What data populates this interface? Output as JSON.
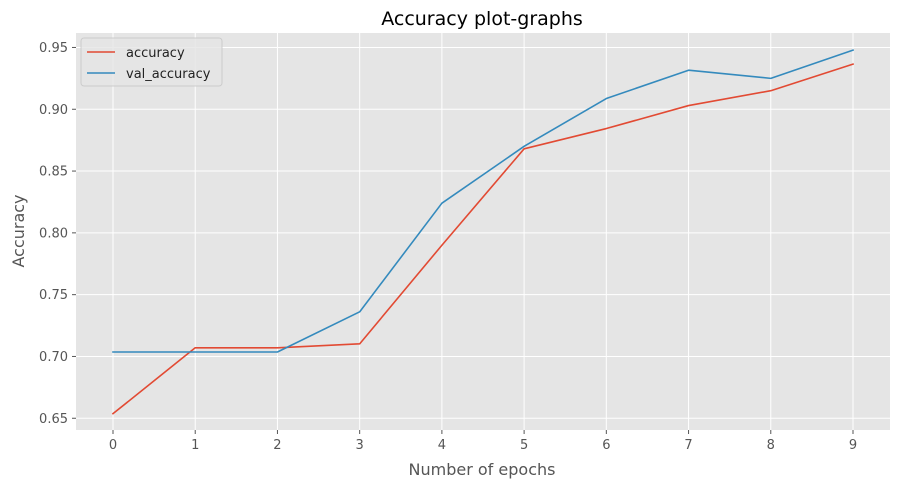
{
  "chart_data": {
    "type": "line",
    "title": "Accuracy plot-graphs",
    "xlabel": "Number of epochs",
    "ylabel": "Accuracy",
    "x": [
      0,
      1,
      2,
      3,
      4,
      5,
      6,
      7,
      8,
      9
    ],
    "xticks": [
      "0",
      "1",
      "2",
      "3",
      "4",
      "5",
      "6",
      "7",
      "8",
      "9"
    ],
    "yticks": [
      "0.65",
      "0.70",
      "0.75",
      "0.80",
      "0.85",
      "0.90",
      "0.95"
    ],
    "ytick_values": [
      0.65,
      0.7,
      0.75,
      0.8,
      0.85,
      0.9,
      0.95
    ],
    "xlim": [
      -0.45,
      9.45
    ],
    "ylim": [
      0.6405,
      0.9617
    ],
    "grid": true,
    "legend_position": "top-left",
    "series": [
      {
        "name": "accuracy",
        "color": "#E24A33",
        "values": [
          0.6537,
          0.707,
          0.707,
          0.7102,
          0.79,
          0.868,
          0.8844,
          0.903,
          0.915,
          0.9365
        ]
      },
      {
        "name": "val_accuracy",
        "color": "#348ABD",
        "values": [
          0.7036,
          0.7036,
          0.7036,
          0.7361,
          0.824,
          0.87,
          0.9087,
          0.9316,
          0.925,
          0.9478
        ]
      }
    ],
    "colors": {
      "plot_background": "#E5E5E5",
      "grid": "#FFFFFF"
    }
  }
}
